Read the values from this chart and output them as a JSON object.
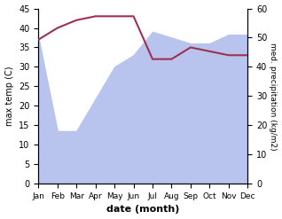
{
  "months": [
    "Jan",
    "Feb",
    "Mar",
    "Apr",
    "May",
    "Jun",
    "Jul",
    "Aug",
    "Sep",
    "Oct",
    "Nov",
    "Dec"
  ],
  "temperature": [
    37,
    40,
    42,
    43,
    43,
    43,
    32,
    32,
    35,
    34,
    33,
    33
  ],
  "precipitation": [
    50,
    18,
    18,
    29,
    40,
    44,
    52,
    50,
    48,
    48,
    51,
    51
  ],
  "temp_color": "#a03050",
  "precip_color": "#b8c4ee",
  "ylabel_left": "max temp (C)",
  "ylabel_right": "med. precipitation (kg/m2)",
  "xlabel": "date (month)",
  "ylim_left": [
    0,
    45
  ],
  "ylim_right": [
    0,
    60
  ],
  "background_color": "#ffffff"
}
